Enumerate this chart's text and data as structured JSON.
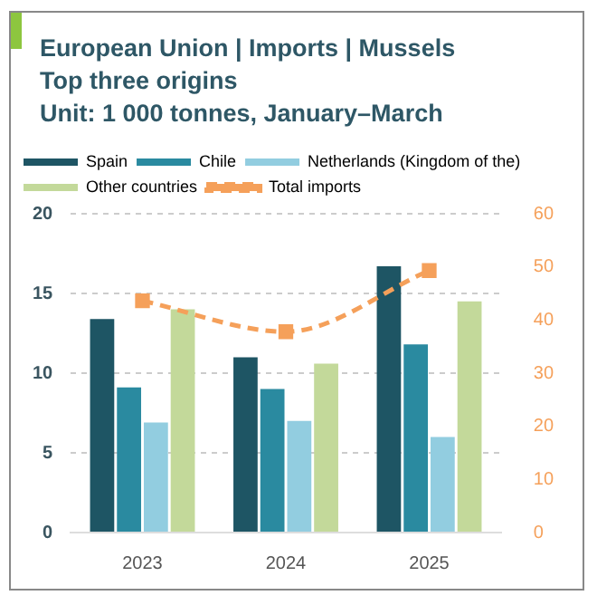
{
  "chart_data": {
    "type": "bar",
    "title": "European Union | Imports | Mussels",
    "subtitle": "Top three origins\nUnit: 1 000 tonnes, January–March",
    "categories": [
      "2023",
      "2024",
      "2025"
    ],
    "series": [
      {
        "name": "Spain",
        "color": "#1e5564",
        "values": [
          13.4,
          11.0,
          16.7
        ]
      },
      {
        "name": "Chile",
        "color": "#2a8aa0",
        "values": [
          9.1,
          9.0,
          11.8
        ]
      },
      {
        "name": "Netherlands (Kingdom of the)",
        "color": "#92cde0",
        "values": [
          6.9,
          7.0,
          6.0
        ]
      },
      {
        "name": "Other countries",
        "color": "#c3d99a",
        "values": [
          14.0,
          10.6,
          14.5
        ]
      },
      {
        "name": "Total imports",
        "type": "line",
        "axis": "y2",
        "color": "#f5a05a",
        "values": [
          43.6,
          37.8,
          49.3
        ],
        "marker": "square",
        "line_style": "dashed"
      }
    ],
    "ylim": [
      0,
      20
    ],
    "yticks": [
      0,
      5,
      10,
      15,
      20
    ],
    "y2lim": [
      0,
      60
    ],
    "y2ticks": [
      0,
      10,
      20,
      30,
      40,
      50,
      60
    ],
    "grid": "y",
    "legend": "top"
  }
}
